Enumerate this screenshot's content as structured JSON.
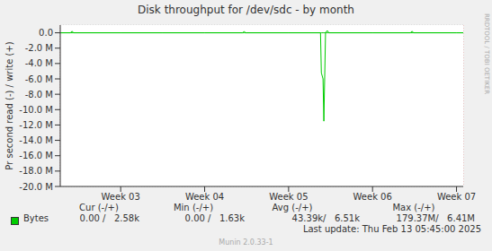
{
  "chart_data": {
    "type": "line",
    "title": "Disk throughput for /dev/sdc - by month",
    "y_label": "Pr second read (-) / write (+)",
    "x": [
      2.28,
      2.4,
      2.42,
      2.44,
      3.0,
      3.5,
      4.0,
      4.45,
      4.47,
      4.49,
      5.0,
      5.38,
      5.39,
      5.41,
      5.42,
      5.44,
      5.46,
      5.48,
      6.0,
      6.45,
      6.47,
      6.49,
      7.0,
      7.08
    ],
    "xlim": [
      2.28,
      7.08
    ],
    "xticks": [
      {
        "value": 3,
        "label": "Week 03"
      },
      {
        "value": 4,
        "label": "Week 04"
      },
      {
        "value": 5,
        "label": "Week 05"
      },
      {
        "value": 6,
        "label": "Week 06"
      },
      {
        "value": 7,
        "label": "Week 07"
      }
    ],
    "ylim": [
      -20000000,
      1000000
    ],
    "yticks": [
      {
        "value": 0,
        "label": "0.0"
      },
      {
        "value": -2000000,
        "label": "-2.0 M"
      },
      {
        "value": -4000000,
        "label": "-4.0 M"
      },
      {
        "value": -6000000,
        "label": "-6.0 M"
      },
      {
        "value": -8000000,
        "label": "-8.0 M"
      },
      {
        "value": -10000000,
        "label": "-10.0 M"
      },
      {
        "value": -12000000,
        "label": "-12.0 M"
      },
      {
        "value": -14000000,
        "label": "-14.0 M"
      },
      {
        "value": -16000000,
        "label": "-16.0 M"
      },
      {
        "value": -18000000,
        "label": "-18.0 M"
      },
      {
        "value": -20000000,
        "label": "-20.0 M"
      }
    ],
    "series": [
      {
        "name": "Bytes",
        "color": "#00cc00",
        "values": [
          0,
          0,
          0,
          0,
          0,
          0,
          0,
          0,
          0,
          0,
          0,
          0,
          -5200000,
          -6000000,
          -11500000,
          0,
          0,
          0,
          0,
          0,
          0,
          0,
          0,
          0
        ],
        "write": [
          0,
          0,
          200000,
          0,
          0,
          0,
          0,
          0,
          150000,
          0,
          0,
          0,
          0,
          0,
          0,
          0,
          300000,
          0,
          0,
          0,
          200000,
          0,
          0,
          0
        ]
      }
    ],
    "grid": true,
    "legend_table": {
      "headers": [
        "Cur (-/+)",
        "Min (-/+)",
        "Avg (-/+)",
        "Max (-/+)"
      ],
      "rows": [
        {
          "name": "Bytes",
          "cells": [
            "0.00 /   2.58k",
            "0.00 /   1.63k",
            "43.39k/   6.51k",
            "179.37M/   6.41M"
          ]
        }
      ]
    },
    "last_update": "Last update: Thu Feb 13 05:45:00 2025",
    "footer": "Munin 2.0.33-1",
    "watermark": "RRDTOOL / TOBI OETIKER"
  }
}
